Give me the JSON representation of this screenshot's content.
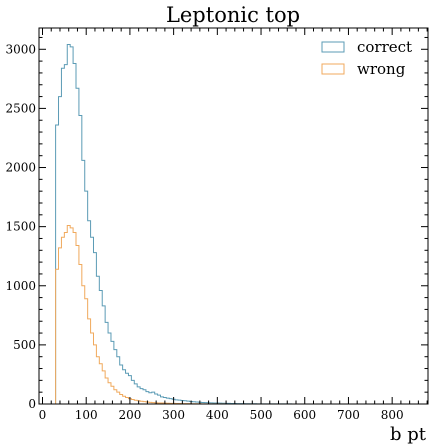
{
  "chart_data": {
    "type": "histogram",
    "title": "Leptonic top",
    "xlabel": "b pt",
    "ylabel": "",
    "xlim": [
      -8,
      882
    ],
    "ylim": [
      0,
      3180
    ],
    "xticks": [
      0,
      100,
      200,
      300,
      400,
      500,
      600,
      700,
      800
    ],
    "yticks": [
      0,
      500,
      1000,
      1500,
      2000,
      2500,
      3000
    ],
    "xtick_labels": [
      "0",
      "100",
      "200",
      "300",
      "400",
      "500",
      "600",
      "700",
      "800"
    ],
    "ytick_labels": [
      "0",
      "500",
      "1000",
      "1500",
      "2000",
      "2500",
      "3000"
    ],
    "grid": false,
    "legend_position": "top-right",
    "bin_edges": [
      30,
      36.66,
      43.33,
      50,
      56.66,
      63.33,
      70,
      76.66,
      83.33,
      90,
      96.66,
      103.33,
      110,
      116.66,
      123.33,
      130,
      136.66,
      143.33,
      150,
      156.66,
      163.33,
      170,
      176.66,
      183.33,
      190,
      196.66,
      203.33,
      210,
      216.66,
      223.33,
      230,
      236.66,
      243.33,
      250,
      256.66,
      263.33,
      270,
      276.66,
      283.33,
      290,
      296.66,
      303.33,
      310,
      316.66,
      323.33,
      330,
      336.66,
      343.33,
      350,
      356.66,
      363.33,
      370,
      376.66,
      383.33,
      390,
      396.66,
      403.33,
      410,
      416.66,
      423.33,
      430,
      436.66,
      443.33,
      450,
      456.66,
      463.33,
      470,
      476.66,
      483.33,
      490,
      496.66,
      503.33,
      510,
      516.66,
      523.33,
      530,
      536.66,
      543.33,
      550,
      556.66,
      563.33,
      570,
      576.66,
      583.33,
      590,
      596.66,
      603.33,
      610
    ],
    "series": [
      {
        "name": "correct",
        "color": "#5b9bb5",
        "values": [
          2360,
          2600,
          2840,
          2870,
          3040,
          3020,
          2880,
          2670,
          2440,
          2060,
          1800,
          1550,
          1410,
          1280,
          1080,
          960,
          830,
          690,
          600,
          530,
          460,
          400,
          330,
          290,
          260,
          240,
          200,
          170,
          145,
          130,
          120,
          105,
          95,
          100,
          85,
          75,
          60,
          55,
          50,
          45,
          40,
          35,
          33,
          30,
          27,
          24,
          21,
          19,
          17,
          15,
          13,
          12,
          11,
          10,
          9,
          8,
          7,
          6,
          5,
          5,
          4,
          4,
          3,
          3,
          3,
          2,
          2,
          2,
          2,
          1,
          1,
          1,
          1,
          1,
          1,
          1,
          1,
          1,
          1,
          1,
          1,
          0,
          0,
          0,
          0,
          0,
          0
        ]
      },
      {
        "name": "wrong",
        "color": "#f0a95c",
        "values": [
          1140,
          1320,
          1410,
          1450,
          1510,
          1490,
          1450,
          1340,
          1180,
          1000,
          890,
          720,
          600,
          500,
          400,
          340,
          280,
          220,
          180,
          150,
          120,
          100,
          80,
          65,
          55,
          45,
          38,
          32,
          27,
          23,
          20,
          17,
          14,
          12,
          10,
          9,
          8,
          7,
          6,
          5,
          5,
          4,
          4,
          3,
          3,
          3,
          2,
          2,
          2,
          2,
          1,
          1,
          1,
          1,
          1,
          1,
          1,
          1,
          0,
          0,
          0,
          0,
          0,
          0,
          0,
          0,
          0,
          0,
          0,
          0,
          0,
          0,
          0,
          0,
          0,
          0,
          0,
          0,
          0,
          0,
          0,
          0,
          0,
          0,
          0,
          0,
          0,
          0
        ]
      }
    ]
  }
}
